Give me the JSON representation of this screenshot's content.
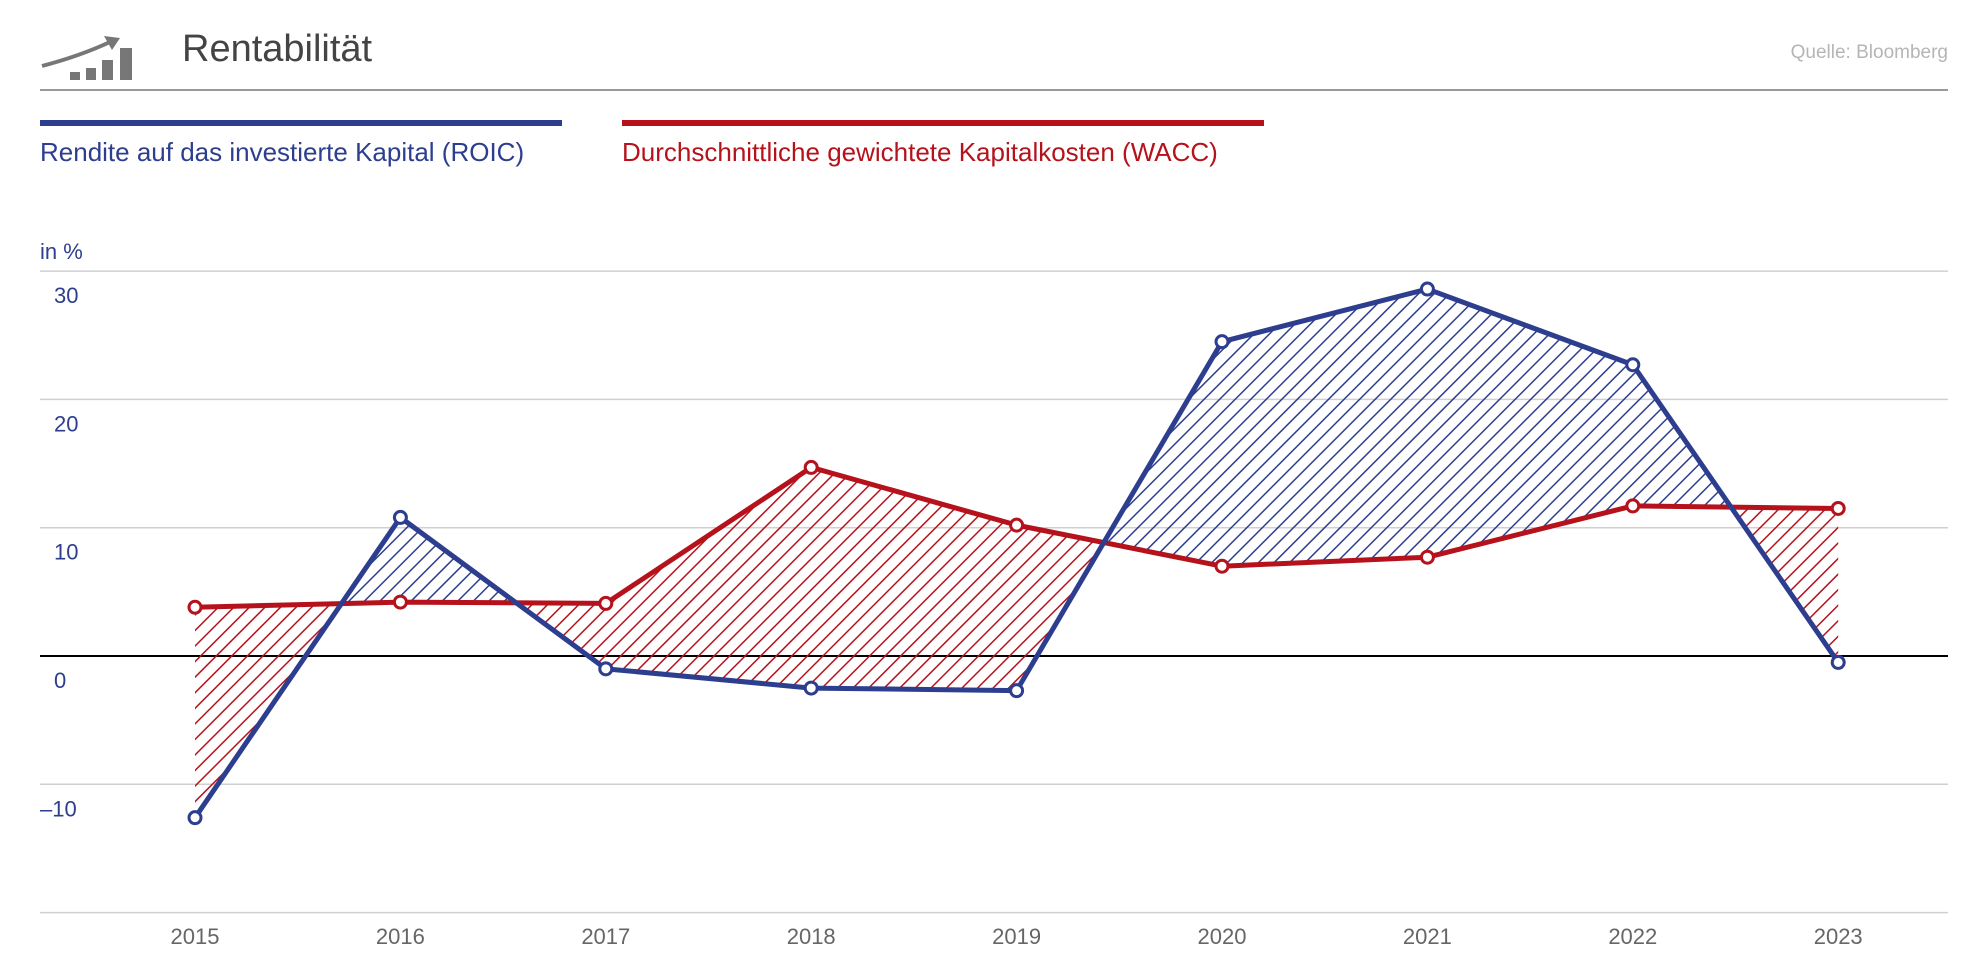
{
  "header": {
    "title": "Rentabilität",
    "source": "Quelle: Bloomberg",
    "icon": "growth-chart-icon"
  },
  "colors": {
    "roic": "#2d3e8f",
    "wacc": "#b5121b",
    "grid": "#d0d0d0",
    "axis_text": "#2d3e8f",
    "year_text": "#666666"
  },
  "chart_data": {
    "type": "line",
    "title": "",
    "ylabel": "in %",
    "x": [
      "2015",
      "2016",
      "2017",
      "2018",
      "2019",
      "2020",
      "2021",
      "2022",
      "2023"
    ],
    "ylim": [
      -20,
      30
    ],
    "yticks": [
      30,
      20,
      10,
      0,
      -10
    ],
    "ytick_labels": [
      "30",
      "20",
      "10",
      "0",
      "–10"
    ],
    "grid": true,
    "legend_placement": "top-left",
    "series": [
      {
        "name": "Rendite auf das investierte Kapital (ROIC)",
        "values": [
          -12.6,
          10.8,
          -1.0,
          -2.5,
          -2.7,
          24.5,
          28.6,
          22.7,
          -0.5
        ]
      },
      {
        "name": "Durchschnittliche gewichtete Kapitalkosten (WACC)",
        "values": [
          3.8,
          4.2,
          4.1,
          14.7,
          10.2,
          7.0,
          7.7,
          11.7,
          11.5
        ]
      }
    ],
    "fill_between": "hatched; blue where ROIC > WACC, red where WACC > ROIC"
  }
}
